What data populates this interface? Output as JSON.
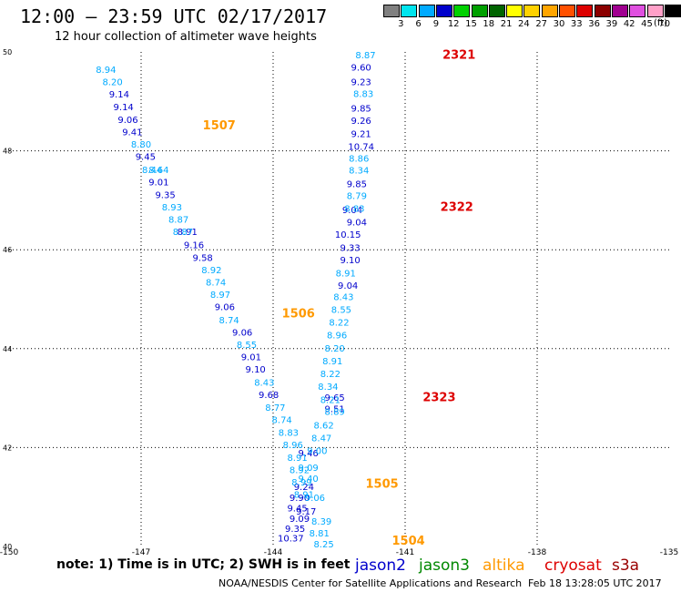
{
  "header": {
    "title": "12:00 – 23:59 UTC 02/17/2017",
    "subtitle": "12 hour collection of altimeter wave heights"
  },
  "colorbar": {
    "unit": "(ft)",
    "labels": [
      "3",
      "6",
      "9",
      "12",
      "15",
      "18",
      "21",
      "24",
      "27",
      "30",
      "33",
      "36",
      "39",
      "42",
      "45",
      "70"
    ],
    "colors": [
      "#808080",
      "#00e5ee",
      "#00aaff",
      "#0000cc",
      "#00d100",
      "#00a000",
      "#006400",
      "#ffff00",
      "#ffd200",
      "#ffa500",
      "#ff5000",
      "#dd0000",
      "#8b0000",
      "#a00090",
      "#e050e0",
      "#ffa0c8",
      "#000000"
    ]
  },
  "note": "note: 1) Time is in UTC; 2) SWH is in feet",
  "legend": [
    {
      "label": "jason2",
      "color": "#0000cc"
    },
    {
      "label": "jason3",
      "color": "#008800"
    },
    {
      "label": "altika",
      "color": "#ff9900"
    },
    {
      "label": "cryosat",
      "color": "#dd0000"
    },
    {
      "label": "s3a",
      "color": "#990000"
    }
  ],
  "footer": "NOAA/NESDIS Center for Satellite Applications and Research",
  "timestamp": "Feb 18 13:28:05 UTC 2017",
  "chart_data": {
    "type": "scatter",
    "xlim": [
      -150,
      -135
    ],
    "ylim": [
      40,
      50
    ],
    "x_ticks": [
      "-150",
      "-147",
      "-144",
      "-141",
      "-138",
      "-135"
    ],
    "y_ticks": [
      "40",
      "42",
      "44",
      "46",
      "48",
      "50"
    ],
    "grid": true,
    "pass_labels": [
      {
        "label": "2321",
        "lon": -140.15,
        "lat": 49.93,
        "color": "#dd0000"
      },
      {
        "label": "1507",
        "lon": -145.6,
        "lat": 48.5,
        "color": "#ff9900"
      },
      {
        "label": "2322",
        "lon": -140.2,
        "lat": 46.85,
        "color": "#dd0000"
      },
      {
        "label": "1506",
        "lon": -143.8,
        "lat": 44.7,
        "color": "#ff9900"
      },
      {
        "label": "2323",
        "lon": -140.6,
        "lat": 43.0,
        "color": "#dd0000"
      },
      {
        "label": "1505",
        "lon": -141.9,
        "lat": 41.25,
        "color": "#ff9900"
      },
      {
        "label": "1504",
        "lon": -141.3,
        "lat": 40.1,
        "color": "#ff9900"
      }
    ],
    "series": [
      {
        "name": "jason2",
        "color": "#0000cc",
        "values": [
          {
            "lon": -142.0,
            "lat": 49.68,
            "v": "9.60"
          },
          {
            "lon": -142.0,
            "lat": 49.38,
            "v": "9.23"
          },
          {
            "lon": -142.0,
            "lat": 48.85,
            "v": "9.85"
          },
          {
            "lon": -142.0,
            "lat": 48.6,
            "v": "9.26"
          },
          {
            "lon": -142.0,
            "lat": 48.33,
            "v": "9.21"
          },
          {
            "lon": -142.0,
            "lat": 48.08,
            "v": "10.74"
          },
          {
            "lon": -142.1,
            "lat": 47.32,
            "v": "9.85"
          },
          {
            "lon": -142.1,
            "lat": 46.55,
            "v": "9.04"
          },
          {
            "lon": -142.2,
            "lat": 46.8,
            "v": "9.04"
          },
          {
            "lon": -142.3,
            "lat": 46.3,
            "v": "10.15"
          },
          {
            "lon": -142.25,
            "lat": 46.03,
            "v": "9.33"
          },
          {
            "lon": -142.25,
            "lat": 45.78,
            "v": "9.10"
          },
          {
            "lon": -142.3,
            "lat": 45.27,
            "v": "9.04"
          },
          {
            "lon": -142.6,
            "lat": 43.0,
            "v": "9.65"
          },
          {
            "lon": -142.6,
            "lat": 42.77,
            "v": "9.51"
          },
          {
            "lon": -143.2,
            "lat": 41.88,
            "v": "9.46"
          },
          {
            "lon": -143.3,
            "lat": 41.2,
            "v": "9.24"
          },
          {
            "lon": -143.4,
            "lat": 40.98,
            "v": "9.90"
          },
          {
            "lon": -143.45,
            "lat": 40.76,
            "v": "9.45"
          },
          {
            "lon": -143.25,
            "lat": 40.7,
            "v": "9.17"
          },
          {
            "lon": -143.4,
            "lat": 40.55,
            "v": "9.09"
          },
          {
            "lon": -143.5,
            "lat": 40.35,
            "v": "9.35"
          },
          {
            "lon": -143.6,
            "lat": 40.16,
            "v": "10.37"
          },
          {
            "lon": -147.5,
            "lat": 49.13,
            "v": "9.14"
          },
          {
            "lon": -147.4,
            "lat": 48.88,
            "v": "9.14"
          },
          {
            "lon": -147.3,
            "lat": 48.62,
            "v": "9.06"
          },
          {
            "lon": -147.2,
            "lat": 48.37,
            "v": "9.41"
          },
          {
            "lon": -146.9,
            "lat": 47.87,
            "v": "9.45"
          },
          {
            "lon": -146.6,
            "lat": 47.36,
            "v": "9.01"
          },
          {
            "lon": -146.45,
            "lat": 47.1,
            "v": "9.35"
          },
          {
            "lon": -145.95,
            "lat": 46.35,
            "v": "8.91"
          },
          {
            "lon": -145.8,
            "lat": 46.09,
            "v": "9.16"
          },
          {
            "lon": -145.6,
            "lat": 45.83,
            "v": "9.58"
          },
          {
            "lon": -145.1,
            "lat": 44.83,
            "v": "9.06"
          },
          {
            "lon": -144.7,
            "lat": 44.32,
            "v": "9.06"
          },
          {
            "lon": -144.5,
            "lat": 43.82,
            "v": "9.01"
          },
          {
            "lon": -144.4,
            "lat": 43.57,
            "v": "9.10"
          },
          {
            "lon": -144.1,
            "lat": 43.06,
            "v": "9.68"
          }
        ]
      },
      {
        "name": "jason3",
        "color": "#00aaff",
        "values": [
          {
            "lon": -141.9,
            "lat": 49.93,
            "v": "8.87"
          },
          {
            "lon": -141.95,
            "lat": 49.14,
            "v": "8.83"
          },
          {
            "lon": -142.05,
            "lat": 47.84,
            "v": "8.86"
          },
          {
            "lon": -142.05,
            "lat": 47.6,
            "v": "8.34"
          },
          {
            "lon": -142.1,
            "lat": 47.08,
            "v": "8.79"
          },
          {
            "lon": -142.15,
            "lat": 46.82,
            "v": "8.83"
          },
          {
            "lon": -142.35,
            "lat": 45.52,
            "v": "8.91"
          },
          {
            "lon": -142.4,
            "lat": 45.04,
            "v": "8.43"
          },
          {
            "lon": -142.45,
            "lat": 44.78,
            "v": "8.55"
          },
          {
            "lon": -142.5,
            "lat": 44.52,
            "v": "8.22"
          },
          {
            "lon": -142.55,
            "lat": 44.26,
            "v": "8.96"
          },
          {
            "lon": -142.6,
            "lat": 44.0,
            "v": "8.20"
          },
          {
            "lon": -142.65,
            "lat": 43.74,
            "v": "8.91"
          },
          {
            "lon": -142.7,
            "lat": 43.48,
            "v": "8.22"
          },
          {
            "lon": -142.75,
            "lat": 43.22,
            "v": "8.34"
          },
          {
            "lon": -142.7,
            "lat": 42.96,
            "v": "8.21"
          },
          {
            "lon": -142.6,
            "lat": 42.72,
            "v": "8.89"
          },
          {
            "lon": -142.85,
            "lat": 42.44,
            "v": "8.62"
          },
          {
            "lon": -142.9,
            "lat": 42.18,
            "v": "8.47"
          },
          {
            "lon": -143.0,
            "lat": 41.92,
            "v": "9.00"
          },
          {
            "lon": -143.2,
            "lat": 41.58,
            "v": "9.09"
          },
          {
            "lon": -143.2,
            "lat": 41.36,
            "v": "9.40"
          },
          {
            "lon": -143.05,
            "lat": 40.98,
            "v": "9.06"
          },
          {
            "lon": -142.9,
            "lat": 40.5,
            "v": "8.39"
          },
          {
            "lon": -142.95,
            "lat": 40.26,
            "v": "8.81"
          },
          {
            "lon": -142.85,
            "lat": 40.04,
            "v": "8.25"
          },
          {
            "lon": -147.8,
            "lat": 49.63,
            "v": "8.94"
          },
          {
            "lon": -147.65,
            "lat": 49.38,
            "v": "8.20"
          },
          {
            "lon": -147.0,
            "lat": 48.12,
            "v": "8.80"
          },
          {
            "lon": -146.75,
            "lat": 47.61,
            "v": "8.44"
          },
          {
            "lon": -146.6,
            "lat": 47.61,
            "v": "8.64"
          },
          {
            "lon": -146.3,
            "lat": 46.85,
            "v": "8.93"
          },
          {
            "lon": -146.15,
            "lat": 46.6,
            "v": "8.87"
          },
          {
            "lon": -146.05,
            "lat": 46.35,
            "v": "8.87"
          },
          {
            "lon": -145.4,
            "lat": 45.58,
            "v": "8.92"
          },
          {
            "lon": -145.3,
            "lat": 45.33,
            "v": "8.74"
          },
          {
            "lon": -145.2,
            "lat": 45.08,
            "v": "8.97"
          },
          {
            "lon": -145.0,
            "lat": 44.57,
            "v": "8.74"
          },
          {
            "lon": -144.6,
            "lat": 44.07,
            "v": "8.55"
          },
          {
            "lon": -144.2,
            "lat": 43.31,
            "v": "8.43"
          },
          {
            "lon": -143.95,
            "lat": 42.8,
            "v": "8.77"
          },
          {
            "lon": -143.8,
            "lat": 42.55,
            "v": "8.74"
          },
          {
            "lon": -143.65,
            "lat": 42.29,
            "v": "8.83"
          },
          {
            "lon": -143.55,
            "lat": 42.04,
            "v": "8.96"
          },
          {
            "lon": -143.45,
            "lat": 41.79,
            "v": "8.91"
          },
          {
            "lon": -143.4,
            "lat": 41.54,
            "v": "8.92"
          },
          {
            "lon": -143.35,
            "lat": 41.29,
            "v": "8.99"
          },
          {
            "lon": -143.3,
            "lat": 41.04,
            "v": "8.91"
          }
        ]
      }
    ]
  }
}
